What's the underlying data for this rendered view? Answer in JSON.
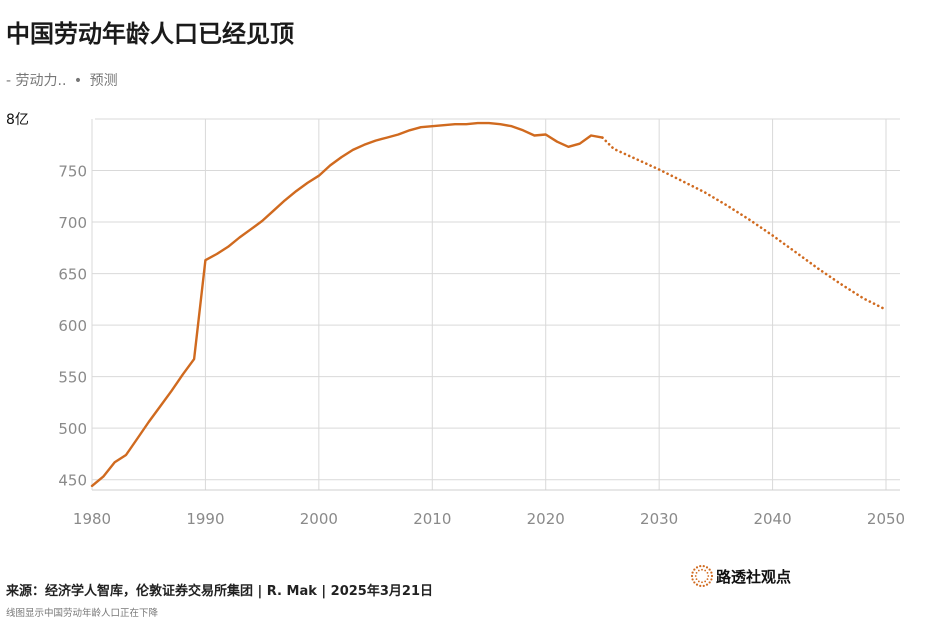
{
  "header": {
    "title": "中国劳动年龄人口已经见顶",
    "legend_prefix": "-",
    "legend_actual": "劳动力..",
    "legend_separator": "•",
    "legend_forecast": "预测"
  },
  "footer": {
    "source": "来源：经济学人智库，伦敦证券交易所集团 | R. Mak | 2025年3月21日",
    "caption": "线图显示中国劳动年龄人口正在下降",
    "brand": "路透社观点"
  },
  "colors": {
    "line": "#d06a1f",
    "grid": "#d9d9d9",
    "tick_text": "#8a8a8a",
    "brand_ring": "#d06a1f"
  },
  "chart_data": {
    "type": "line",
    "title": "中国劳动年龄人口已经见顶",
    "ylabel": "8亿",
    "ylim": [
      440,
      800
    ],
    "xlim": [
      1980,
      2050
    ],
    "grid": true,
    "x_ticks": [
      1980,
      1990,
      2000,
      2010,
      2020,
      2030,
      2040,
      2050
    ],
    "y_ticks": [
      450,
      500,
      550,
      600,
      650,
      700,
      750
    ],
    "top_tick_label": "8亿",
    "series": [
      {
        "name": "劳动力..",
        "style": "solid",
        "x": [
          1980,
          1981,
          1982,
          1983,
          1984,
          1985,
          1986,
          1987,
          1988,
          1989,
          1990,
          1991,
          1992,
          1993,
          1994,
          1995,
          1996,
          1997,
          1998,
          1999,
          2000,
          2001,
          2002,
          2003,
          2004,
          2005,
          2006,
          2007,
          2008,
          2009,
          2010,
          2011,
          2012,
          2013,
          2014,
          2015,
          2016,
          2017,
          2018,
          2019,
          2020,
          2021,
          2022,
          2023,
          2024,
          2025
        ],
        "y": [
          444,
          453,
          467,
          474,
          490,
          506,
          521,
          536,
          552,
          567,
          663,
          669,
          676,
          685,
          693,
          701,
          711,
          721,
          730,
          738,
          745,
          755,
          763,
          770,
          775,
          779,
          782,
          785,
          789,
          792,
          793,
          794,
          795,
          795,
          796,
          796,
          795,
          793,
          789,
          784,
          785,
          778,
          773,
          776,
          784,
          782
        ]
      },
      {
        "name": "预测",
        "style": "dotted",
        "x": [
          2025,
          2026,
          2028,
          2030,
          2032,
          2034,
          2036,
          2038,
          2040,
          2042,
          2044,
          2046,
          2048,
          2050
        ],
        "y": [
          782,
          771,
          761,
          751,
          740,
          729,
          716,
          702,
          687,
          671,
          655,
          640,
          626,
          615
        ]
      }
    ]
  }
}
